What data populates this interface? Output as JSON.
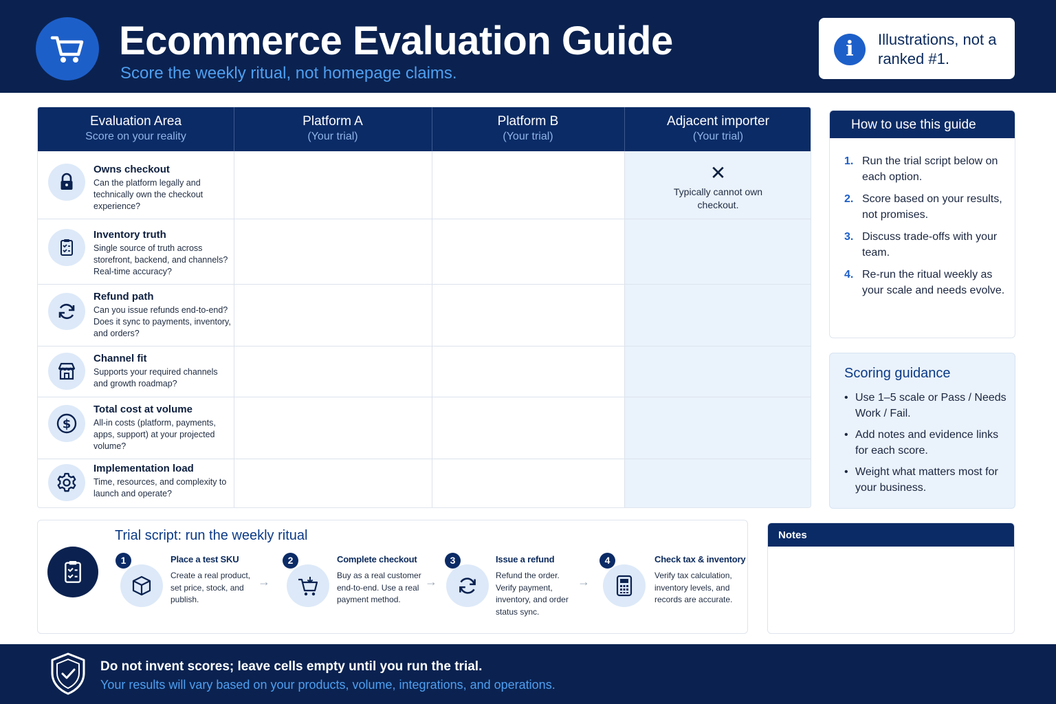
{
  "header": {
    "title": "Ecommerce Evaluation Guide",
    "subtitle": "Score the weekly ritual, not homepage claims.",
    "notice": "Illustrations, not a ranked #1.",
    "logo_icon": "shopping-cart-icon",
    "notice_icon": "info-icon"
  },
  "table": {
    "columns": [
      {
        "label": "Evaluation Area",
        "sub": "Score on your reality"
      },
      {
        "label": "Platform A",
        "sub": "(Your trial)"
      },
      {
        "label": "Platform B",
        "sub": "(Your trial)"
      },
      {
        "label": "Adjacent importer",
        "sub": "(Your trial)"
      }
    ],
    "rows": [
      {
        "title": "Owns checkout",
        "desc": "Can the platform legally and technically own the checkout experience?",
        "icon": "lock-icon"
      },
      {
        "title": "Inventory truth",
        "desc": "Single source of truth across storefront, backend, and channels? Real-time accuracy?",
        "icon": "clipboard-check-icon"
      },
      {
        "title": "Refund path",
        "desc": "Can you issue refunds end-to-end? Does it sync to payments, inventory, and orders?",
        "icon": "refresh-icon"
      },
      {
        "title": "Channel fit",
        "desc": "Supports your required channels and growth roadmap?",
        "icon": "storefront-icon"
      },
      {
        "title": "Total cost at volume",
        "desc": "All-in costs (platform, payments, apps, support) at your projected volume?",
        "icon": "dollar-icon"
      },
      {
        "title": "Implementation load",
        "desc": "Time, resources, and complexity to launch and operate?",
        "icon": "gear-icon"
      }
    ],
    "importer_checkout": {
      "mark": "✕",
      "note": "Typically cannot own checkout."
    }
  },
  "howto": {
    "title": "How to use this guide",
    "steps": [
      {
        "num": "1.",
        "text": "Run the trial script below on each option."
      },
      {
        "num": "2.",
        "text": "Score based on your results, not promises."
      },
      {
        "num": "3.",
        "text": "Discuss trade-offs with your team."
      },
      {
        "num": "4.",
        "text": "Re-run the ritual weekly as your scale and needs evolve."
      }
    ]
  },
  "scoring": {
    "title": "Scoring guidance",
    "items": [
      "Use 1–5 scale or Pass / Needs Work / Fail.",
      "Add notes and evidence links for each score.",
      "Weight what matters most for your business."
    ]
  },
  "trial": {
    "title": "Trial script: run the weekly ritual",
    "badge_icon": "clipboard-check-icon",
    "steps": [
      {
        "num": "1",
        "title": "Place a test SKU",
        "desc": "Create a real product, set price, stock, and publish.",
        "icon": "box-icon"
      },
      {
        "num": "2",
        "title": "Complete checkout",
        "desc": "Buy as a real customer end-to-end. Use a real payment method.",
        "icon": "cart-add-icon"
      },
      {
        "num": "3",
        "title": "Issue a refund",
        "desc": "Refund the order. Verify payment, inventory, and order status sync.",
        "icon": "refresh-icon"
      },
      {
        "num": "4",
        "title": "Check tax & inventory",
        "desc": "Verify tax calculation, inventory levels, and records are accurate.",
        "icon": "calculator-icon"
      }
    ]
  },
  "notes": {
    "title": "Notes"
  },
  "footer": {
    "main": "Do not invent scores; leave cells empty until you run the trial.",
    "sub": "Your results will vary based on your products, volume, integrations, and operations.",
    "icon": "shield-check-icon"
  },
  "colors": {
    "navy": "#0b2250",
    "table_header": "#0b2b66",
    "accent_blue": "#1d5fc9",
    "light_blue": "#4f9ff0",
    "shaded_column": "#eaf2fb"
  }
}
